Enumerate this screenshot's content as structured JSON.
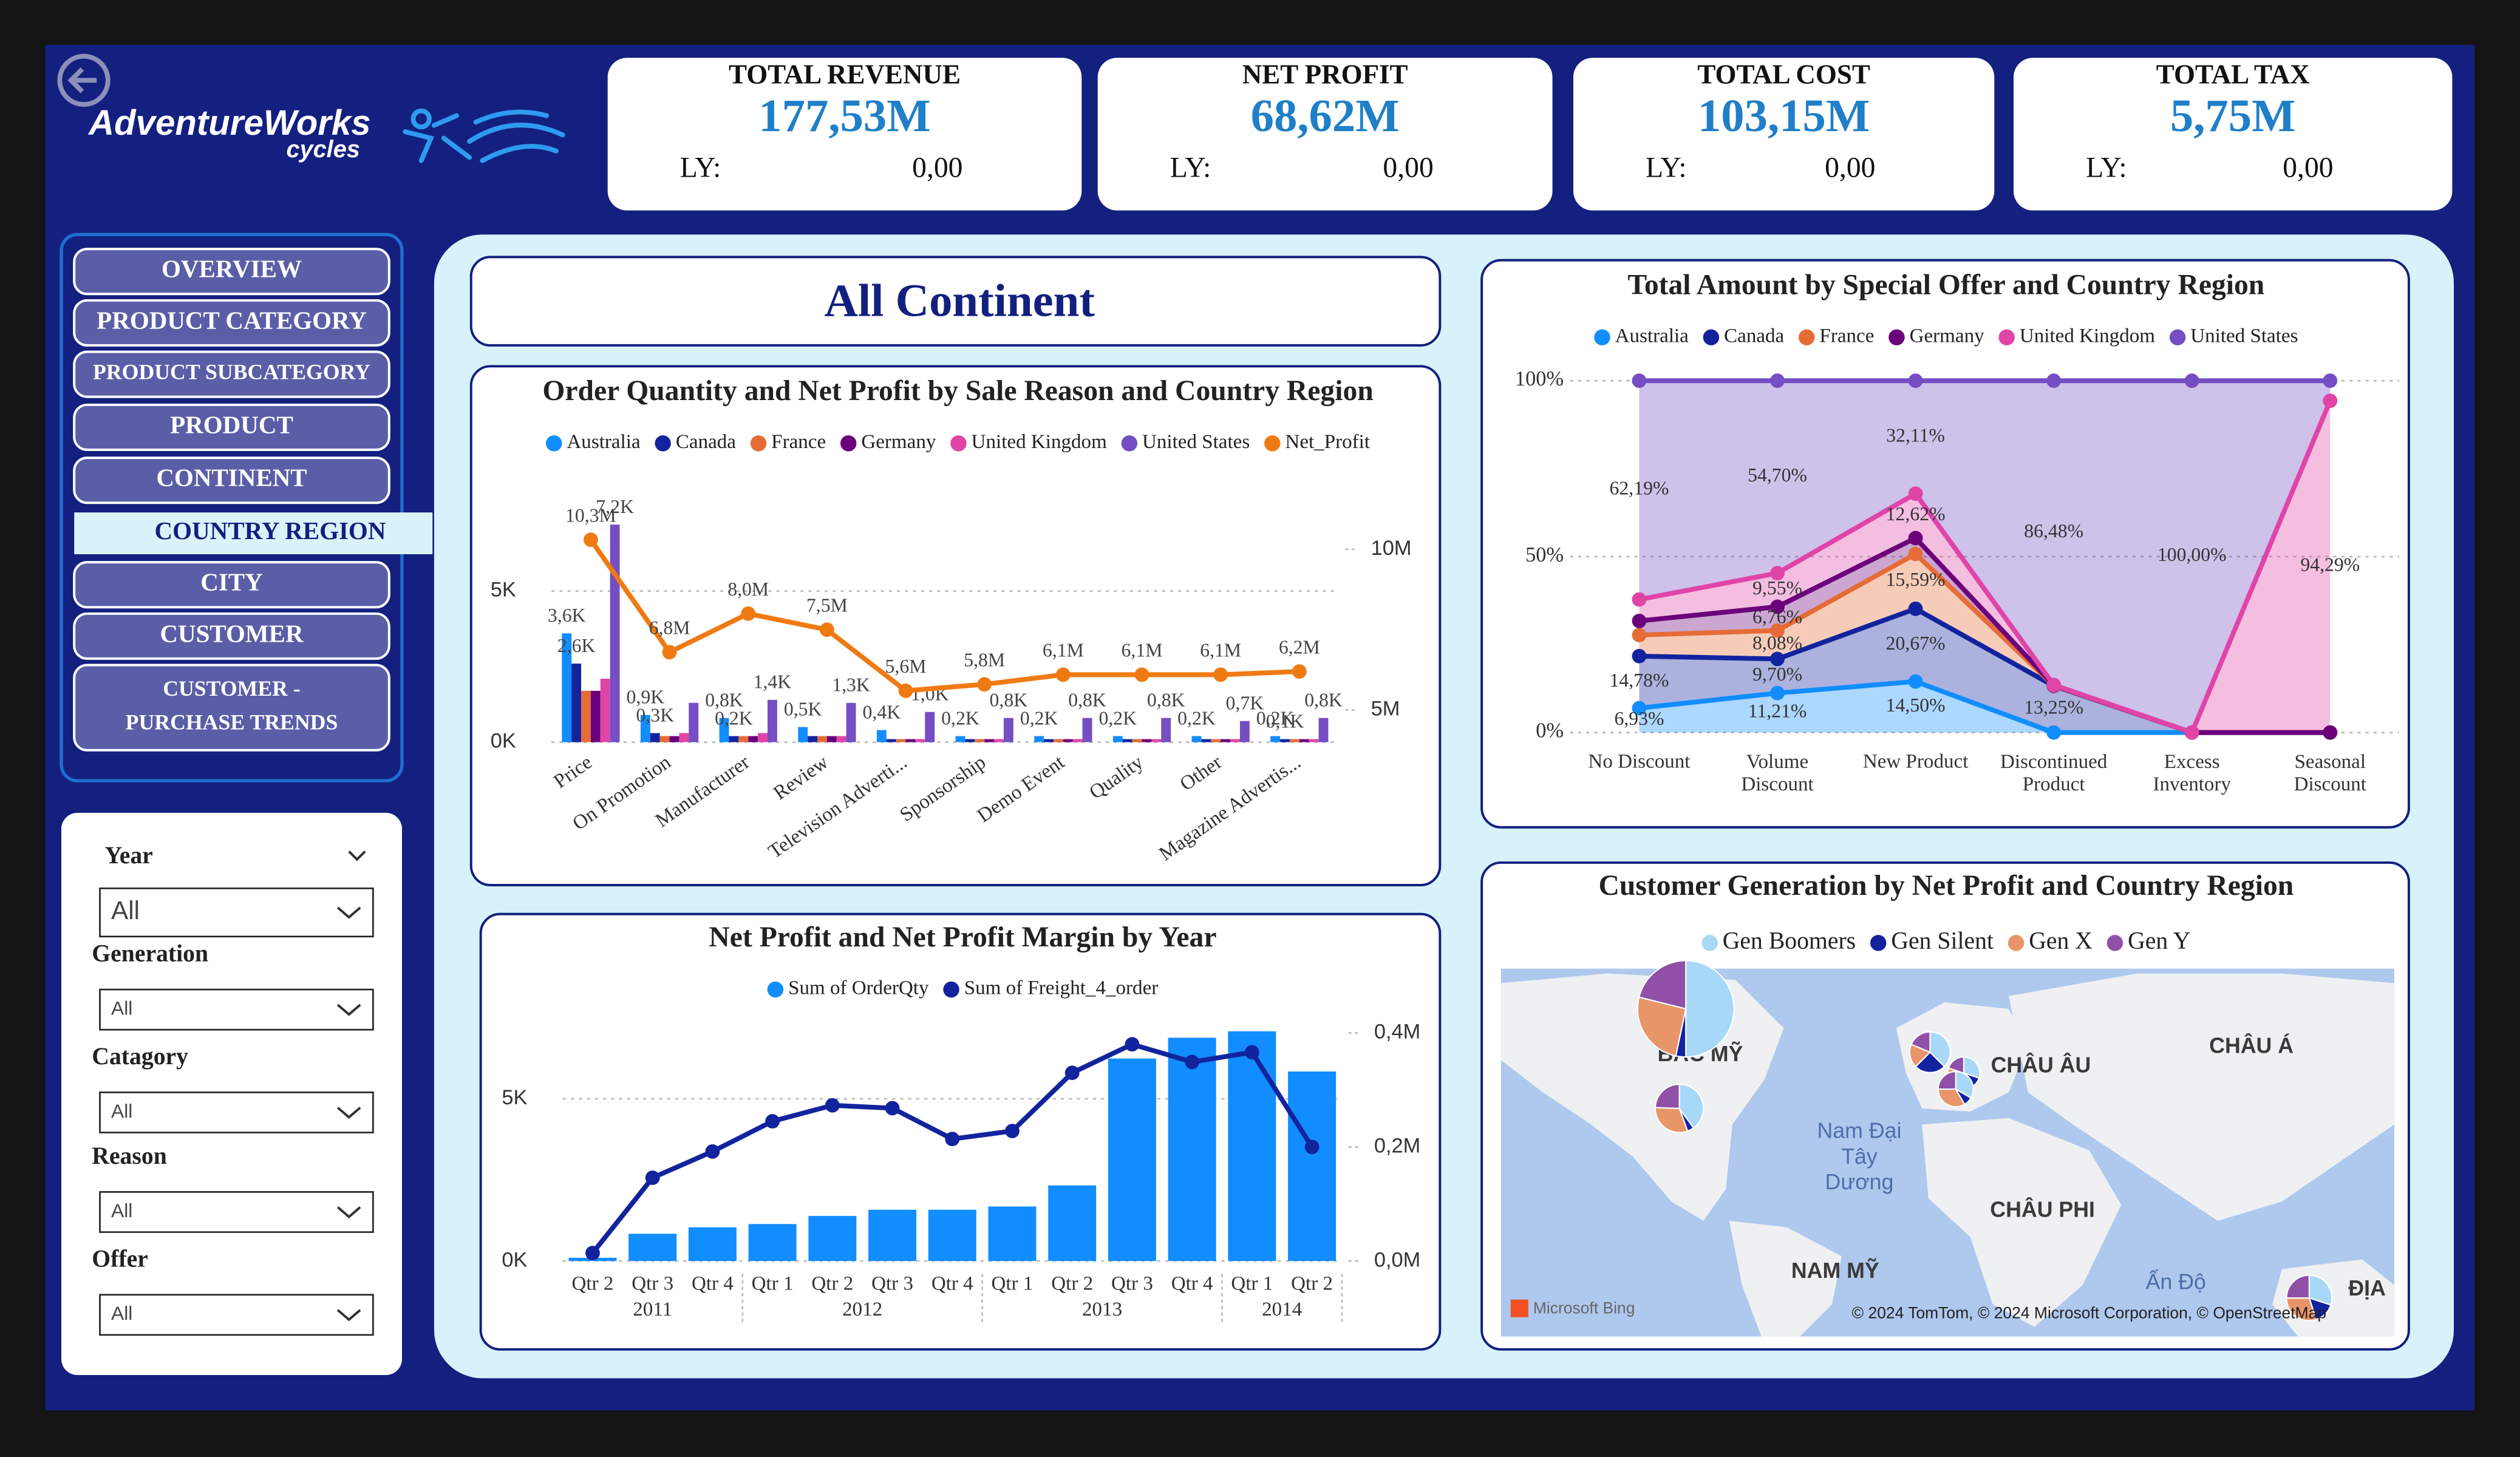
{
  "logo": {
    "brand": "AdventureWorks",
    "tagline": "cycles"
  },
  "kpis": [
    {
      "title": "TOTAL REVENUE",
      "value": "177,53M",
      "ly_label": "LY:",
      "ly_value": "0,00"
    },
    {
      "title": "NET PROFIT",
      "value": "68,62M",
      "ly_label": "LY:",
      "ly_value": "0,00"
    },
    {
      "title": "TOTAL COST",
      "value": "103,15M",
      "ly_label": "LY:",
      "ly_value": "0,00"
    },
    {
      "title": "TOTAL TAX",
      "value": "5,75M",
      "ly_label": "LY:",
      "ly_value": "0,00"
    }
  ],
  "nav": {
    "items": [
      "OVERVIEW",
      "PRODUCT CATEGORY",
      "PRODUCT SUBCATEGORY",
      "PRODUCT",
      "CONTINENT",
      "COUNTRY REGION",
      "CITY",
      "CUSTOMER",
      "CUSTOMER - PURCHASE TRENDS"
    ],
    "selected": 5
  },
  "filters": [
    {
      "label": "Year",
      "value": "All"
    },
    {
      "label": "Generation",
      "value": "All"
    },
    {
      "label": "Catagory",
      "value": "All"
    },
    {
      "label": "Reason",
      "value": "All"
    },
    {
      "label": "Offer",
      "value": "All"
    }
  ],
  "page_title": "All Continent",
  "chart_data": [
    {
      "type": "bar_line",
      "title": "Order Quantity and Net Profit by Sale Reason and Country Region",
      "categories": [
        "Price",
        "On Promotion",
        "Manufacturer",
        "Review",
        "Television Adverti...",
        "Sponsorship",
        "Demo Event",
        "Quality",
        "Other",
        "Magazine Advertis..."
      ],
      "series": [
        {
          "name": "Australia",
          "color": "#118DFF",
          "values": [
            3600,
            900,
            800,
            500,
            400,
            200,
            200,
            200,
            200,
            200
          ],
          "value_labels": [
            "3,6K",
            "0,9K",
            "0,8K",
            "0,5K",
            "0,4K",
            "0,2K",
            "0,2K",
            "0,2K",
            "0,2K",
            "0,2K"
          ]
        },
        {
          "name": "Canada",
          "color": "#12239E",
          "values": [
            2600,
            300,
            200,
            200,
            100,
            100,
            100,
            100,
            100,
            100
          ],
          "value_labels": [
            "2,6K",
            "0,3K",
            "0,2K",
            null,
            null,
            null,
            null,
            null,
            null,
            "0,1K"
          ]
        },
        {
          "name": "France",
          "color": "#E66C37",
          "values": [
            1700,
            200,
            200,
            200,
            100,
            100,
            100,
            100,
            100,
            100
          ]
        },
        {
          "name": "Germany",
          "color": "#6B007B",
          "values": [
            1700,
            200,
            200,
            200,
            100,
            100,
            100,
            100,
            100,
            100
          ]
        },
        {
          "name": "United Kingdom",
          "color": "#E044A7",
          "values": [
            2100,
            300,
            300,
            200,
            100,
            100,
            100,
            100,
            100,
            100
          ]
        },
        {
          "name": "United States",
          "color": "#744EC2",
          "values": [
            7200,
            1300,
            1400,
            1300,
            1000,
            800,
            800,
            800,
            700,
            800
          ],
          "value_labels": [
            "7,2K",
            null,
            "1,4K",
            "1,3K",
            "1,0K",
            "0,8K",
            "0,8K",
            "0,8K",
            "0,7K",
            "0,8K"
          ]
        },
        {
          "name": "Net_Profit",
          "color": "#F07A12",
          "axis": "y2",
          "values": [
            10300000,
            6800000,
            8000000,
            7500000,
            5600000,
            5800000,
            6100000,
            6100000,
            6100000,
            6200000
          ],
          "value_labels": [
            "10,3M",
            "6,8M",
            "8,0M",
            "7,5M",
            "5,6M",
            "5,8M",
            "6,1M",
            "6,1M",
            "6,1M",
            "6,2M"
          ]
        }
      ],
      "ylim": [
        0,
        7550
      ],
      "yticks": [
        {
          "value": 0,
          "label": "0K"
        },
        {
          "value": 5000,
          "label": "5K"
        }
      ],
      "y2lim": [
        4000000,
        11100000
      ],
      "y2ticks": [
        {
          "value": 5000000,
          "label": "5M"
        },
        {
          "value": 10000000,
          "label": "10M"
        }
      ],
      "grid": true
    },
    {
      "type": "bar_line",
      "title": "Net Profit and Net Profit Margin by Year",
      "categories": [
        "Qtr 2",
        "Qtr 3",
        "Qtr 4",
        "Qtr 1",
        "Qtr 2",
        "Qtr 3",
        "Qtr 4",
        "Qtr 1",
        "Qtr 2",
        "Qtr 3",
        "Qtr 4",
        "Qtr 1",
        "Qtr 2"
      ],
      "category_groups": [
        "2011",
        "2011",
        "2011",
        "2012",
        "2012",
        "2012",
        "2012",
        "2013",
        "2013",
        "2013",
        "2013",
        "2014",
        "2014"
      ],
      "series": [
        {
          "name": "Sum of OrderQty",
          "color": "#118DFF",
          "values": [
            100,
            840,
            1040,
            1140,
            1390,
            1580,
            1580,
            1680,
            2330,
            6240,
            6880,
            7080,
            5840
          ]
        },
        {
          "name": "Sum of Freight_4_order",
          "color": "#12239E",
          "axis": "y2",
          "values": [
            14000,
            146000,
            192000,
            245000,
            273000,
            268000,
            214000,
            228000,
            330000,
            380000,
            349000,
            366000,
            200000
          ]
        }
      ],
      "ylim": [
        0,
        7673
      ],
      "yticks": [
        {
          "value": 0,
          "label": "0K"
        },
        {
          "value": 5000,
          "label": "5K"
        }
      ],
      "y2lim": [
        0,
        436600
      ],
      "y2ticks": [
        {
          "value": 0,
          "label": "0,0M"
        },
        {
          "value": 200000,
          "label": "0,2M"
        },
        {
          "value": 400000,
          "label": "0,4M"
        }
      ],
      "grid": true
    },
    {
      "type": "stacked_area",
      "title": "Total Amount by Special Offer and Country Region",
      "categories": [
        "No Discount",
        "Volume Discount",
        "New Product",
        "Discontinued Product",
        "Excess Inventory",
        "Seasonal Discount"
      ],
      "series": [
        {
          "name": "Australia",
          "color": "#118DFF",
          "values": [
            6.93,
            11.21,
            14.5,
            0,
            0,
            0
          ],
          "value_labels": [
            "6,93%",
            "11,21%",
            "14,50%",
            null,
            null,
            null
          ]
        },
        {
          "name": "Canada",
          "color": "#12239E",
          "values": [
            14.78,
            9.7,
            20.67,
            13.25,
            0,
            0
          ],
          "value_labels": [
            "14,78%",
            "9,70%",
            "20,67%",
            "13,25%",
            null,
            null
          ]
        },
        {
          "name": "France",
          "color": "#E66C37",
          "values": [
            6.0,
            8.08,
            15.59,
            0.1,
            0,
            0
          ],
          "value_labels": [
            null,
            "8,08%",
            "15,59%",
            null,
            null,
            null
          ]
        },
        {
          "name": "Germany",
          "color": "#6B007B",
          "values": [
            4.0,
            6.76,
            4.51,
            0.1,
            0,
            0
          ],
          "value_labels": [
            null,
            "6,76%",
            null,
            null,
            null,
            null
          ]
        },
        {
          "name": "United Kingdom",
          "color": "#E044A7",
          "values": [
            6.1,
            9.55,
            12.62,
            0.07,
            0,
            94.29
          ],
          "value_labels": [
            null,
            "9,55%",
            "12,62%",
            null,
            null,
            "94,29%"
          ]
        },
        {
          "name": "United States",
          "color": "#744EC2",
          "values": [
            62.19,
            54.7,
            32.11,
            86.48,
            100,
            5.71
          ],
          "value_labels": [
            "62,19%",
            "54,70%",
            "32,11%",
            "86,48%",
            "100,00%",
            null
          ]
        }
      ],
      "ylim": [
        0,
        100
      ],
      "yticks": [
        {
          "value": 0,
          "label": "0%"
        },
        {
          "value": 50,
          "label": "50%"
        },
        {
          "value": 100,
          "label": "100%"
        }
      ],
      "grid": true
    },
    {
      "type": "map_pie",
      "title": "Customer Generation by Net Profit and Country Region",
      "series": [
        {
          "name": "Gen Boomers",
          "color": "#A8D8F8"
        },
        {
          "name": "Gen Silent",
          "color": "#12239E"
        },
        {
          "name": "Gen X",
          "color": "#E8956A"
        },
        {
          "name": "Gen Y",
          "color": "#9050A8"
        }
      ],
      "pies": [
        {
          "values": [
            450,
            30,
            230,
            190
          ]
        },
        {
          "values": [
            90,
            10,
            70,
            55
          ]
        },
        {
          "values": [
            60,
            40,
            30,
            30
          ]
        },
        {
          "values": [
            30,
            20,
            30,
            20
          ]
        },
        {
          "values": [
            40,
            10,
            40,
            30
          ]
        },
        {
          "values": [
            60,
            30,
            60,
            50
          ]
        }
      ],
      "map_labels": [
        "BẮC MỸ",
        "CHÂU ÂU",
        "CHÂU Á",
        "Nam Đại Tây Dương",
        "CHÂU PHI",
        "NAM MỸ",
        "Ấn Độ",
        "ĐỊA"
      ],
      "provider": "Microsoft Bing",
      "attribution": "© 2024 TomTom, © 2024 Microsoft Corporation, © OpenStreetMap"
    }
  ]
}
